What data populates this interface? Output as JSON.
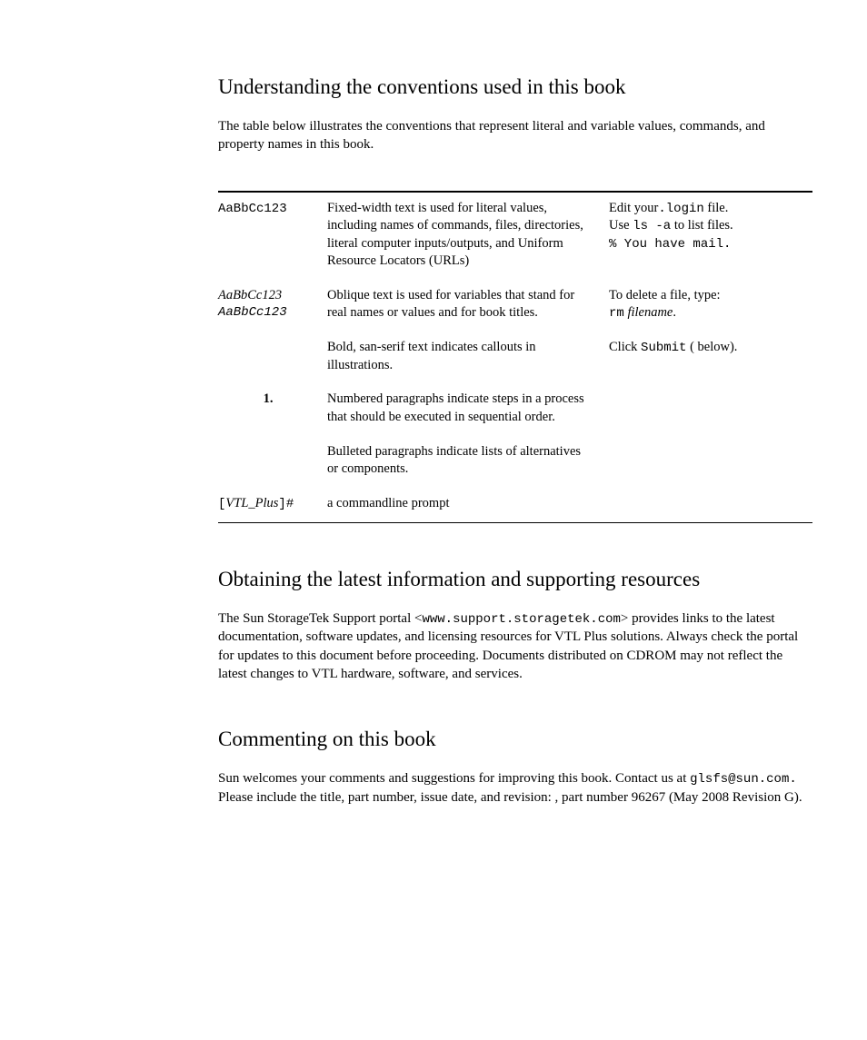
{
  "section1": {
    "heading": "Understanding the conventions used in this book",
    "intro": "The table below illustrates the conventions that represent literal and variable values, commands, and property names in this book."
  },
  "table": {
    "rows": [
      {
        "col1": {
          "type": "mono",
          "text": "AaBbCc123"
        },
        "col2": "Fixed-width text is used for literal values, including names of commands, files, directories, literal computer inputs/outputs, and Uniform Resource Locators (URLs)",
        "col3_parts": [
          {
            "plain": "Edit your",
            "mono": ".login",
            "after": " file."
          },
          {
            "plain": "Use ",
            "mono": "ls -a",
            "after": " to list files."
          },
          {
            "mono2": "% You have mail."
          }
        ]
      },
      {
        "col1": {
          "type": "dual",
          "text1": "AaBbCc123",
          "text2": "AaBbCc123"
        },
        "col2": "Oblique text is used for variables that stand for real names or values and for book titles.",
        "col3_parts": [
          {
            "plain": "To delete a file, type:"
          },
          {
            "mono": "rm",
            "italic": " filename",
            "after": "."
          }
        ]
      },
      {
        "col1": {
          "type": "empty"
        },
        "col2": "Bold, san-serif text indicates callouts in illustrations.",
        "col3_parts": [
          {
            "plain": "Click ",
            "mono": "Submit",
            "after": " (   below)."
          }
        ]
      },
      {
        "col1": {
          "type": "num",
          "text": "1."
        },
        "col2": "Numbered paragraphs indicate steps in a process that should be executed in sequential order.",
        "col3_parts": []
      },
      {
        "col1": {
          "type": "empty"
        },
        "col2": "Bulleted paragraphs indicate lists of alternatives or components.",
        "col3_parts": []
      },
      {
        "col1": {
          "type": "prompt",
          "pre": "[",
          "italic": "VTL_Plus",
          "post": "]#"
        },
        "col2": "a commandline prompt",
        "col3_parts": []
      }
    ]
  },
  "section2": {
    "heading": "Obtaining the latest information and supporting resources",
    "pre": "The Sun StorageTek Support portal <",
    "mono": "www.support.storagetek.com",
    "post": "> provides links to the latest documentation, software updates, and licensing resources for VTL Plus solutions. Always check the portal for updates to this document before proceeding. Documents distributed on CDROM may not reflect the latest changes to VTL hardware, software, and services."
  },
  "section3": {
    "heading": "Commenting on this book",
    "pre": "Sun welcomes your comments and suggestions for improving this book. Contact us at ",
    "mono": "glsfs@sun.com.",
    "mid": "  Please include the title, part number, issue date, and revision: ",
    "tail": ", part number 96267 (May 2008 Revision G)."
  }
}
